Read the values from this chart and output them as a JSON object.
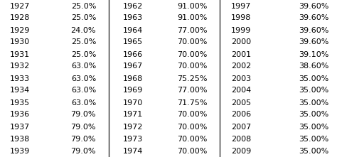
{
  "col1": [
    [
      "1927",
      "25.0%"
    ],
    [
      "1928",
      "25.0%"
    ],
    [
      "1929",
      "24.0%"
    ],
    [
      "1930",
      "25.0%"
    ],
    [
      "1931",
      "25.0%"
    ],
    [
      "1932",
      "63.0%"
    ],
    [
      "1933",
      "63.0%"
    ],
    [
      "1934",
      "63.0%"
    ],
    [
      "1935",
      "63.0%"
    ],
    [
      "1936",
      "79.0%"
    ],
    [
      "1937",
      "79.0%"
    ],
    [
      "1938",
      "79.0%"
    ],
    [
      "1939",
      "79.0%"
    ]
  ],
  "col2": [
    [
      "1962",
      "91.00%"
    ],
    [
      "1963",
      "91.00%"
    ],
    [
      "1964",
      "77.00%"
    ],
    [
      "1965",
      "70.00%"
    ],
    [
      "1966",
      "70.00%"
    ],
    [
      "1967",
      "70.00%"
    ],
    [
      "1968",
      "75.25%"
    ],
    [
      "1969",
      "77.00%"
    ],
    [
      "1970",
      "71.75%"
    ],
    [
      "1971",
      "70.00%"
    ],
    [
      "1972",
      "70.00%"
    ],
    [
      "1973",
      "70.00%"
    ],
    [
      "1974",
      "70.00%"
    ]
  ],
  "col3": [
    [
      "1997",
      "39.60%"
    ],
    [
      "1998",
      "39.60%"
    ],
    [
      "1999",
      "39.60%"
    ],
    [
      "2000",
      "39.60%"
    ],
    [
      "2001",
      "39.10%"
    ],
    [
      "2002",
      "38.60%"
    ],
    [
      "2003",
      "35.00%"
    ],
    [
      "2004",
      "35.00%"
    ],
    [
      "2005",
      "35.00%"
    ],
    [
      "2006",
      "35.00%"
    ],
    [
      "2007",
      "35.00%"
    ],
    [
      "2008",
      "35.00%"
    ],
    [
      "2009",
      "35.00%"
    ]
  ],
  "bg_color": "#ffffff",
  "text_color": "#000000",
  "separator_color": "#333333",
  "font_size": 8.0
}
